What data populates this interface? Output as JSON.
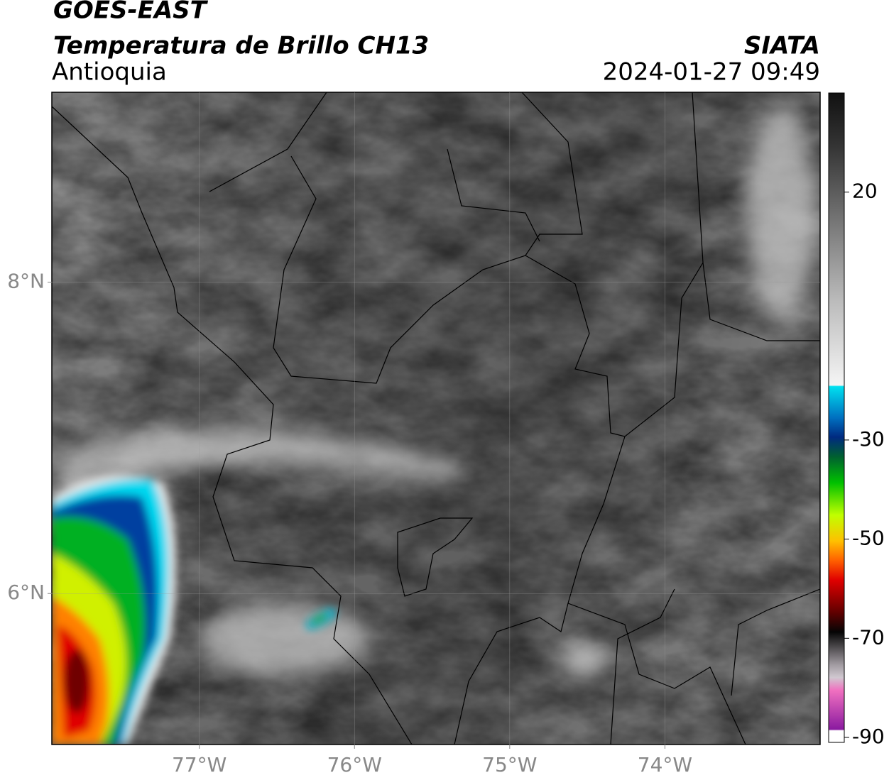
{
  "header": {
    "title": "GOES-EAST",
    "product": "Temperatura de Brillo CH13",
    "region": "Antioquia",
    "source": "SIATA",
    "datetime": "2024-01-27 09:49"
  },
  "map": {
    "lonlim": [
      -77.95,
      -73.0
    ],
    "latlim": [
      5.03,
      9.22
    ],
    "lonticks": [
      {
        "value": -77,
        "label": "77°W"
      },
      {
        "value": -76,
        "label": "76°W"
      },
      {
        "value": -75,
        "label": "75°W"
      },
      {
        "value": -74,
        "label": "74°W"
      }
    ],
    "latticks": [
      {
        "value": 8,
        "label": "8°N"
      },
      {
        "value": 6,
        "label": "6°N"
      }
    ]
  },
  "colorbar": {
    "lim": [
      -91,
      40
    ],
    "ticks": [
      20,
      -30,
      -50,
      -70,
      -90
    ]
  }
}
